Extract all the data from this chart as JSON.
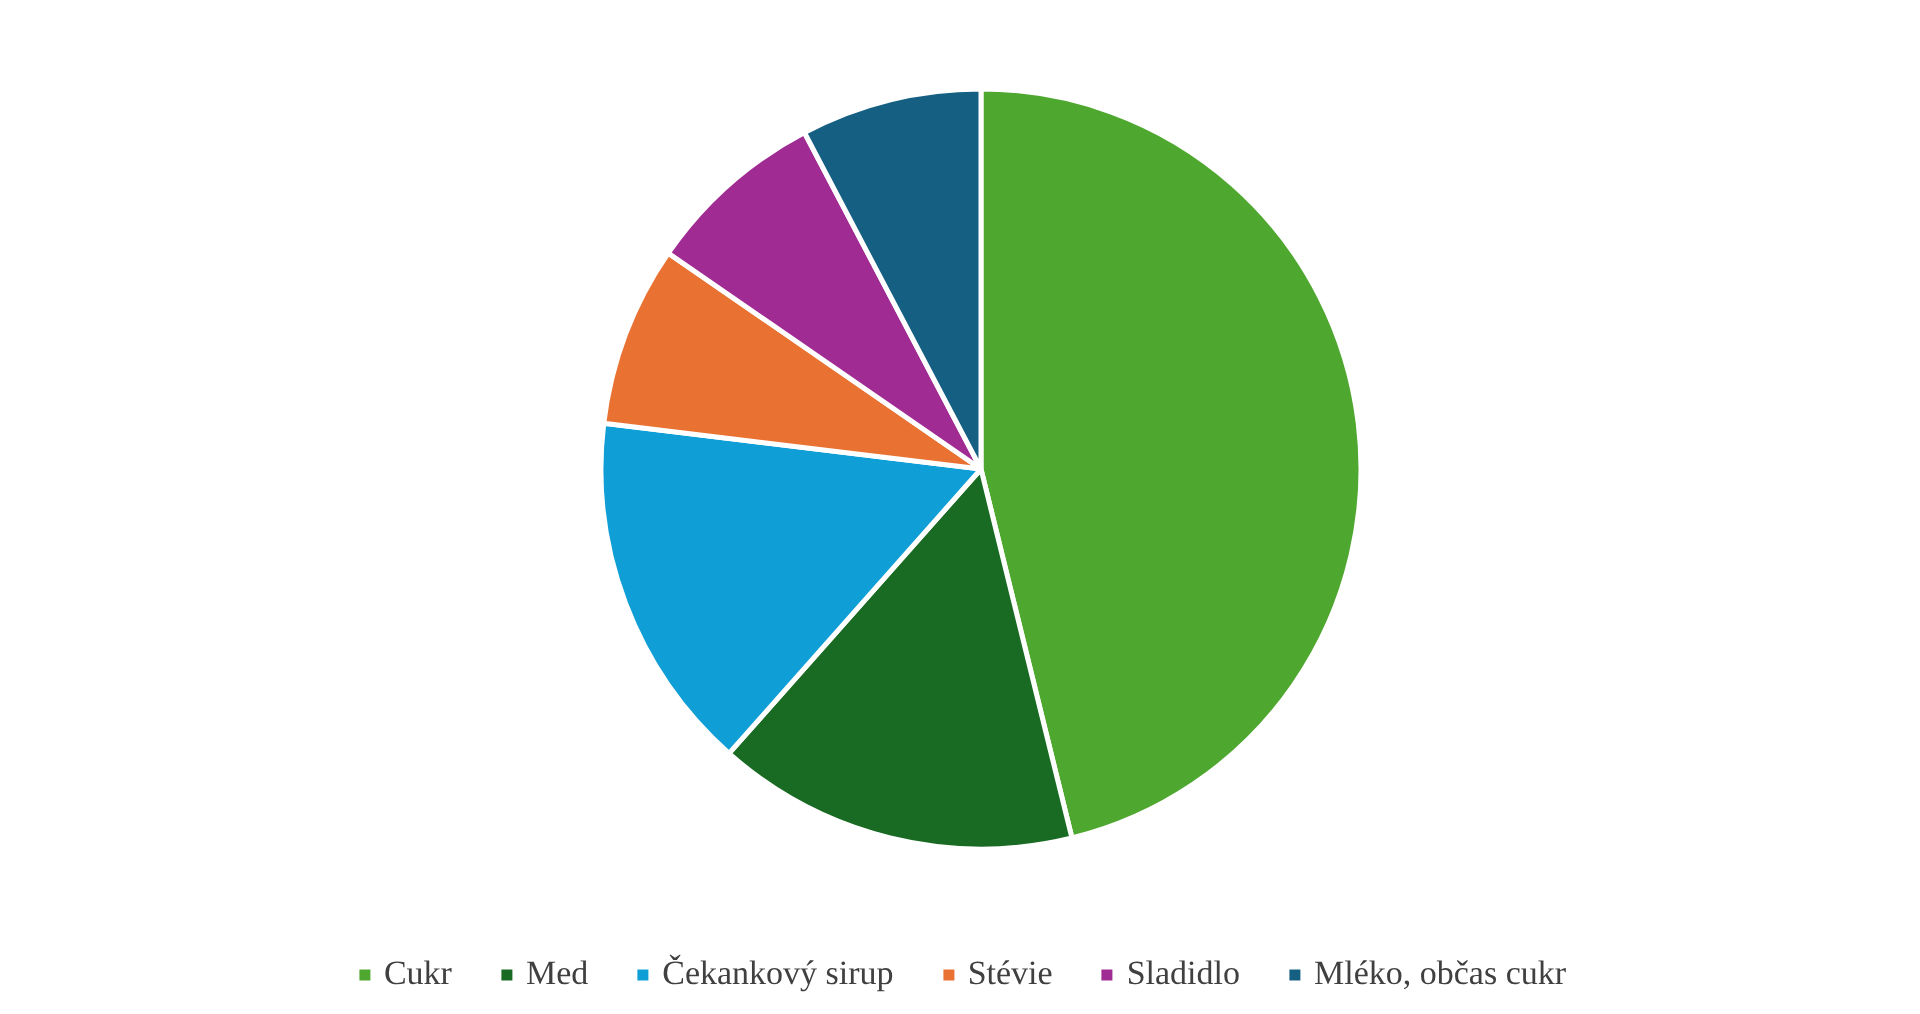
{
  "chart_data": {
    "type": "pie",
    "categories": [
      "Cukr",
      "Med",
      "Čekankový sirup",
      "Stévie",
      "Sladidlo",
      "Mléko, občas cukr"
    ],
    "values": [
      46.2,
      15.4,
      15.4,
      7.7,
      7.7,
      7.7
    ],
    "colors": [
      "#4ea72e",
      "#196b24",
      "#0f9ed5",
      "#e97132",
      "#a02b93",
      "#156082"
    ],
    "legend": "bottom"
  }
}
